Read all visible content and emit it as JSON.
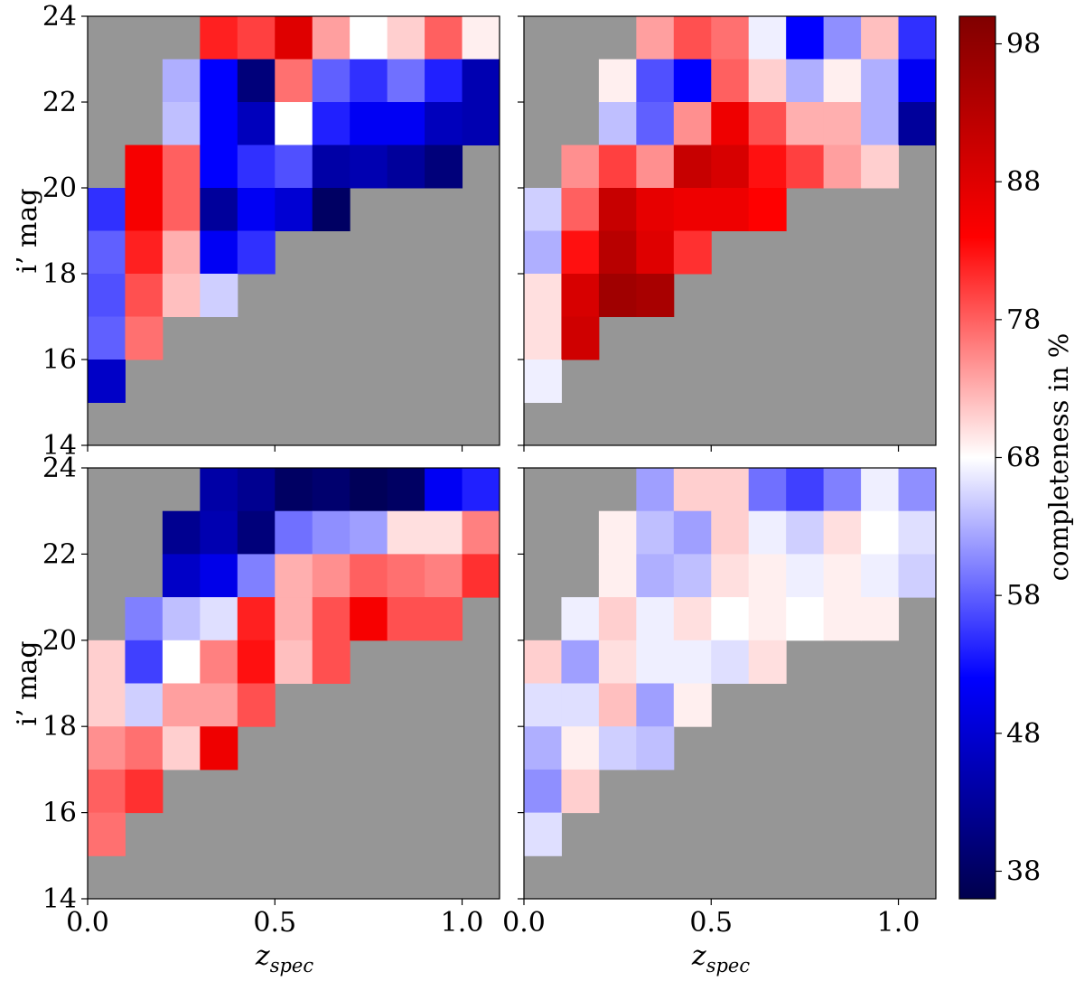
{
  "chart_data": {
    "type": "heatmap",
    "x_bin_edges": [
      0.0,
      0.1,
      0.2,
      0.3,
      0.4,
      0.5,
      0.6,
      0.7,
      0.8,
      0.9,
      1.0,
      1.1
    ],
    "y_bin_edges_top_to_bottom": [
      24,
      23,
      22,
      21,
      20,
      19,
      18,
      17,
      16,
      15,
      14
    ],
    "xlim": [
      0.0,
      1.1
    ],
    "ylim": [
      14,
      24
    ],
    "xticks": [
      0.0,
      0.5,
      1.0
    ],
    "xtick_labels": [
      "0.0",
      "0.5",
      "1.0"
    ],
    "yticks": [
      14,
      16,
      18,
      20,
      22,
      24
    ],
    "ytick_labels": [
      "14",
      "16",
      "18",
      "20",
      "22",
      "24"
    ],
    "xlabel_main": "z",
    "xlabel_sub": "spec",
    "ylabel": "i’ mag",
    "colorbar": {
      "label": "completeness in %",
      "vmin": 36,
      "vmax": 100,
      "center": 68,
      "colormap": "seismic",
      "ticks": [
        38,
        48,
        58,
        68,
        78,
        88,
        98
      ],
      "tick_labels": [
        "38",
        "48",
        "58",
        "68",
        "78",
        "88",
        "98"
      ]
    },
    "missing_color": "#969696",
    "panels": [
      {
        "position": "top-left",
        "values": [
          [
            null,
            null,
            null,
            82,
            80,
            88,
            74,
            68,
            71,
            78,
            69
          ],
          [
            null,
            null,
            63,
            52,
            40,
            77,
            58,
            55,
            59,
            54,
            45
          ],
          [
            null,
            null,
            64,
            52,
            46,
            68,
            54,
            51,
            51,
            46,
            45
          ],
          [
            null,
            85,
            78,
            52,
            55,
            57,
            44,
            45,
            43,
            40,
            null
          ],
          [
            55,
            85,
            78,
            43,
            51,
            48,
            38,
            null,
            null,
            null,
            null
          ],
          [
            58,
            82,
            73,
            51,
            55,
            null,
            null,
            null,
            null,
            null,
            null
          ],
          [
            57,
            79,
            72,
            65,
            null,
            null,
            null,
            null,
            null,
            null,
            null
          ],
          [
            58,
            77,
            null,
            null,
            null,
            null,
            null,
            null,
            null,
            null,
            null
          ],
          [
            47,
            null,
            null,
            null,
            null,
            null,
            null,
            null,
            null,
            null,
            null
          ],
          [
            null,
            null,
            null,
            null,
            null,
            null,
            null,
            null,
            null,
            null,
            null
          ]
        ]
      },
      {
        "position": "top-right",
        "values": [
          [
            null,
            null,
            null,
            74,
            79,
            77,
            67,
            52,
            61,
            72,
            55
          ],
          [
            null,
            null,
            69,
            57,
            52,
            78,
            71,
            63,
            69,
            63,
            51
          ],
          [
            null,
            null,
            64,
            58,
            75,
            86,
            79,
            73,
            73,
            63,
            43
          ],
          [
            null,
            75,
            80,
            75,
            91,
            89,
            83,
            80,
            74,
            71,
            null
          ],
          [
            65,
            78,
            91,
            87,
            86,
            86,
            84,
            null,
            null,
            null,
            null
          ],
          [
            63,
            83,
            93,
            88,
            81,
            null,
            null,
            null,
            null,
            null,
            null
          ],
          [
            70,
            89,
            96,
            95,
            null,
            null,
            null,
            null,
            null,
            null,
            null
          ],
          [
            70,
            90,
            null,
            null,
            null,
            null,
            null,
            null,
            null,
            null,
            null
          ],
          [
            67,
            null,
            null,
            null,
            null,
            null,
            null,
            null,
            null,
            null,
            null
          ],
          [
            null,
            null,
            null,
            null,
            null,
            null,
            null,
            null,
            null,
            null,
            null
          ]
        ]
      },
      {
        "position": "bottom-left",
        "values": [
          [
            null,
            null,
            null,
            44,
            42,
            38,
            39,
            37,
            38,
            51,
            54
          ],
          [
            null,
            null,
            42,
            45,
            40,
            59,
            61,
            62,
            70,
            70,
            76
          ],
          [
            null,
            null,
            47,
            50,
            60,
            73,
            75,
            78,
            77,
            76,
            81
          ],
          [
            null,
            60,
            64,
            66,
            82,
            73,
            79,
            85,
            79,
            79,
            null
          ],
          [
            71,
            56,
            68,
            76,
            83,
            72,
            79,
            null,
            null,
            null,
            null
          ],
          [
            71,
            65,
            74,
            74,
            79,
            null,
            null,
            null,
            null,
            null,
            null
          ],
          [
            75,
            77,
            71,
            86,
            null,
            null,
            null,
            null,
            null,
            null,
            null
          ],
          [
            78,
            81,
            null,
            null,
            null,
            null,
            null,
            null,
            null,
            null,
            null
          ],
          [
            77,
            null,
            null,
            null,
            null,
            null,
            null,
            null,
            null,
            null,
            null
          ],
          [
            null,
            null,
            null,
            null,
            null,
            null,
            null,
            null,
            null,
            null,
            null
          ]
        ]
      },
      {
        "position": "bottom-right",
        "values": [
          [
            null,
            null,
            null,
            62,
            71,
            71,
            59,
            56,
            60,
            67,
            61
          ],
          [
            null,
            null,
            69,
            64,
            62,
            71,
            67,
            65,
            70,
            68,
            66
          ],
          [
            null,
            null,
            69,
            63,
            64,
            70,
            69,
            67,
            69,
            67,
            65
          ],
          [
            null,
            67,
            71,
            67,
            70,
            68,
            69,
            68,
            69,
            69,
            null
          ],
          [
            71,
            62,
            70,
            67,
            67,
            66,
            70,
            null,
            null,
            null,
            null
          ],
          [
            66,
            66,
            72,
            62,
            69,
            null,
            null,
            null,
            null,
            null,
            null
          ],
          [
            63,
            69,
            65,
            64,
            null,
            null,
            null,
            null,
            null,
            null,
            null
          ],
          [
            61,
            71,
            null,
            null,
            null,
            null,
            null,
            null,
            null,
            null,
            null
          ],
          [
            66,
            null,
            null,
            null,
            null,
            null,
            null,
            null,
            null,
            null,
            null
          ],
          [
            null,
            null,
            null,
            null,
            null,
            null,
            null,
            null,
            null,
            null,
            null
          ]
        ]
      }
    ]
  }
}
